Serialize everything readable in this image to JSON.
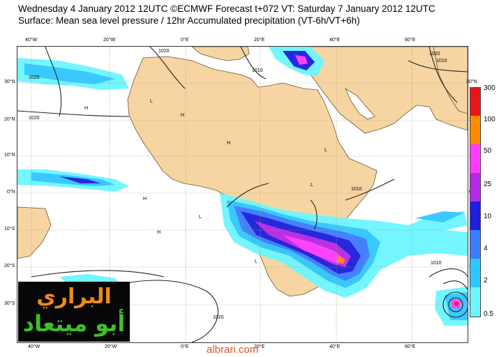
{
  "header": {
    "line1": "Wednesday 4 January 2012 12UTC ©ECMWF Forecast t+072 VT: Saturday 7 January 2012 12UTC",
    "line2": "Surface: Mean sea level pressure / 12hr Accumulated precipitation (VT-6h/VT+6h)"
  },
  "map": {
    "lon_labels": [
      "40°W",
      "20°W",
      "0°E",
      "20°E",
      "40°E",
      "60°E"
    ],
    "lat_labels": [
      "30°N",
      "20°N",
      "10°N",
      "0°N",
      "10°S",
      "20°S",
      "30°S"
    ],
    "right_lat_labels": [
      "30°N",
      "20",
      "10",
      "0",
      "10",
      "20",
      "30"
    ],
    "isobar_labels": [
      "1020",
      "1020",
      "1010",
      "1020",
      "1020",
      "1010",
      "1020",
      "1010",
      "1010"
    ],
    "pressure_centers": [
      "H",
      "H",
      "H",
      "H",
      "L",
      "L",
      "L",
      "L",
      "H",
      "L"
    ],
    "colors": {
      "land": "#f6d5a2",
      "sea": "#ffffff",
      "grid": "#b09a72",
      "isobar": "#222222"
    }
  },
  "legend": {
    "levels": [
      "300",
      "100",
      "50",
      "25",
      "10",
      "4",
      "2",
      "0.5"
    ],
    "colors": [
      "#e8151b",
      "#ff8a00",
      "#ff3cff",
      "#b42ae6",
      "#1c1ee0",
      "#3c7cff",
      "#2fc7ff",
      "#6cf6ff"
    ]
  },
  "logo": {
    "line1": "البراري",
    "line2": "أبو ميتعاد",
    "colors": {
      "background": "#070707",
      "line1": "#f08a18",
      "line2": "#3fbf2a"
    }
  },
  "footer": {
    "site": "albrari.com"
  }
}
